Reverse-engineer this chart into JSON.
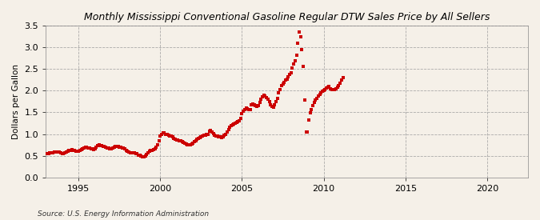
{
  "title": "Monthly Mississippi Conventional Gasoline Regular DTW Sales Price by All Sellers",
  "ylabel": "Dollars per Gallon",
  "source": "Source: U.S. Energy Information Administration",
  "background_color": "#f5f0e8",
  "marker_color": "#cc0000",
  "ylim": [
    0.0,
    3.5
  ],
  "yticks": [
    0.0,
    0.5,
    1.0,
    1.5,
    2.0,
    2.5,
    3.0,
    3.5
  ],
  "xlim": [
    1993.0,
    2022.5
  ],
  "xticks": [
    1995,
    2000,
    2005,
    2010,
    2015,
    2020
  ],
  "monthly_data": [
    [
      1993.08,
      0.54
    ],
    [
      1993.17,
      0.55
    ],
    [
      1993.25,
      0.56
    ],
    [
      1993.33,
      0.57
    ],
    [
      1993.42,
      0.57
    ],
    [
      1993.5,
      0.58
    ],
    [
      1993.58,
      0.59
    ],
    [
      1993.67,
      0.59
    ],
    [
      1993.75,
      0.59
    ],
    [
      1993.83,
      0.58
    ],
    [
      1993.92,
      0.57
    ],
    [
      1994.0,
      0.55
    ],
    [
      1994.08,
      0.55
    ],
    [
      1994.17,
      0.57
    ],
    [
      1994.25,
      0.58
    ],
    [
      1994.33,
      0.6
    ],
    [
      1994.42,
      0.62
    ],
    [
      1994.5,
      0.63
    ],
    [
      1994.58,
      0.64
    ],
    [
      1994.67,
      0.63
    ],
    [
      1994.75,
      0.62
    ],
    [
      1994.83,
      0.61
    ],
    [
      1994.92,
      0.6
    ],
    [
      1995.0,
      0.6
    ],
    [
      1995.08,
      0.62
    ],
    [
      1995.17,
      0.64
    ],
    [
      1995.25,
      0.66
    ],
    [
      1995.33,
      0.68
    ],
    [
      1995.42,
      0.69
    ],
    [
      1995.5,
      0.69
    ],
    [
      1995.58,
      0.68
    ],
    [
      1995.67,
      0.67
    ],
    [
      1995.75,
      0.66
    ],
    [
      1995.83,
      0.65
    ],
    [
      1995.92,
      0.64
    ],
    [
      1996.0,
      0.65
    ],
    [
      1996.08,
      0.7
    ],
    [
      1996.17,
      0.73
    ],
    [
      1996.25,
      0.75
    ],
    [
      1996.33,
      0.74
    ],
    [
      1996.42,
      0.73
    ],
    [
      1996.5,
      0.72
    ],
    [
      1996.58,
      0.71
    ],
    [
      1996.67,
      0.7
    ],
    [
      1996.75,
      0.68
    ],
    [
      1996.83,
      0.67
    ],
    [
      1996.92,
      0.65
    ],
    [
      1997.0,
      0.66
    ],
    [
      1997.08,
      0.68
    ],
    [
      1997.17,
      0.7
    ],
    [
      1997.25,
      0.71
    ],
    [
      1997.33,
      0.71
    ],
    [
      1997.42,
      0.71
    ],
    [
      1997.5,
      0.7
    ],
    [
      1997.58,
      0.69
    ],
    [
      1997.67,
      0.68
    ],
    [
      1997.75,
      0.67
    ],
    [
      1997.83,
      0.65
    ],
    [
      1997.92,
      0.62
    ],
    [
      1998.0,
      0.6
    ],
    [
      1998.08,
      0.58
    ],
    [
      1998.17,
      0.57
    ],
    [
      1998.25,
      0.56
    ],
    [
      1998.33,
      0.56
    ],
    [
      1998.42,
      0.56
    ],
    [
      1998.5,
      0.55
    ],
    [
      1998.58,
      0.54
    ],
    [
      1998.67,
      0.52
    ],
    [
      1998.75,
      0.51
    ],
    [
      1998.83,
      0.5
    ],
    [
      1998.92,
      0.48
    ],
    [
      1999.0,
      0.48
    ],
    [
      1999.08,
      0.5
    ],
    [
      1999.17,
      0.53
    ],
    [
      1999.25,
      0.57
    ],
    [
      1999.33,
      0.6
    ],
    [
      1999.42,
      0.62
    ],
    [
      1999.5,
      0.63
    ],
    [
      1999.58,
      0.64
    ],
    [
      1999.67,
      0.66
    ],
    [
      1999.75,
      0.7
    ],
    [
      1999.83,
      0.76
    ],
    [
      1999.92,
      0.84
    ],
    [
      2000.0,
      0.96
    ],
    [
      2000.08,
      1.0
    ],
    [
      2000.17,
      1.02
    ],
    [
      2000.25,
      1.02
    ],
    [
      2000.33,
      1.0
    ],
    [
      2000.42,
      0.99
    ],
    [
      2000.5,
      0.97
    ],
    [
      2000.58,
      0.96
    ],
    [
      2000.67,
      0.95
    ],
    [
      2000.75,
      0.93
    ],
    [
      2000.83,
      0.9
    ],
    [
      2000.92,
      0.88
    ],
    [
      2001.0,
      0.87
    ],
    [
      2001.08,
      0.86
    ],
    [
      2001.17,
      0.85
    ],
    [
      2001.25,
      0.84
    ],
    [
      2001.33,
      0.82
    ],
    [
      2001.42,
      0.81
    ],
    [
      2001.5,
      0.79
    ],
    [
      2001.58,
      0.77
    ],
    [
      2001.67,
      0.76
    ],
    [
      2001.75,
      0.75
    ],
    [
      2001.83,
      0.76
    ],
    [
      2001.92,
      0.77
    ],
    [
      2002.0,
      0.79
    ],
    [
      2002.08,
      0.82
    ],
    [
      2002.17,
      0.85
    ],
    [
      2002.25,
      0.88
    ],
    [
      2002.33,
      0.9
    ],
    [
      2002.42,
      0.92
    ],
    [
      2002.5,
      0.94
    ],
    [
      2002.58,
      0.95
    ],
    [
      2002.67,
      0.97
    ],
    [
      2002.75,
      0.98
    ],
    [
      2002.83,
      0.99
    ],
    [
      2002.92,
      1.0
    ],
    [
      2003.0,
      1.06
    ],
    [
      2003.08,
      1.08
    ],
    [
      2003.17,
      1.04
    ],
    [
      2003.25,
      1.01
    ],
    [
      2003.33,
      0.98
    ],
    [
      2003.42,
      0.96
    ],
    [
      2003.5,
      0.95
    ],
    [
      2003.58,
      0.94
    ],
    [
      2003.67,
      0.93
    ],
    [
      2003.75,
      0.92
    ],
    [
      2003.83,
      0.94
    ],
    [
      2003.92,
      0.97
    ],
    [
      2004.0,
      1.0
    ],
    [
      2004.08,
      1.05
    ],
    [
      2004.17,
      1.11
    ],
    [
      2004.25,
      1.16
    ],
    [
      2004.33,
      1.2
    ],
    [
      2004.42,
      1.22
    ],
    [
      2004.5,
      1.23
    ],
    [
      2004.58,
      1.24
    ],
    [
      2004.67,
      1.26
    ],
    [
      2004.75,
      1.28
    ],
    [
      2004.83,
      1.3
    ],
    [
      2004.92,
      1.36
    ],
    [
      2005.0,
      1.47
    ],
    [
      2005.08,
      1.52
    ],
    [
      2005.17,
      1.57
    ],
    [
      2005.25,
      1.6
    ],
    [
      2005.33,
      1.59
    ],
    [
      2005.42,
      1.57
    ],
    [
      2005.5,
      1.56
    ],
    [
      2005.58,
      1.67
    ],
    [
      2005.67,
      1.7
    ],
    [
      2005.75,
      1.68
    ],
    [
      2005.83,
      1.66
    ],
    [
      2005.92,
      1.63
    ],
    [
      2006.0,
      1.65
    ],
    [
      2006.08,
      1.72
    ],
    [
      2006.17,
      1.8
    ],
    [
      2006.25,
      1.86
    ],
    [
      2006.33,
      1.9
    ],
    [
      2006.42,
      1.87
    ],
    [
      2006.5,
      1.84
    ],
    [
      2006.58,
      1.8
    ],
    [
      2006.67,
      1.75
    ],
    [
      2006.75,
      1.68
    ],
    [
      2006.83,
      1.64
    ],
    [
      2006.92,
      1.62
    ],
    [
      2007.0,
      1.68
    ],
    [
      2007.08,
      1.74
    ],
    [
      2007.17,
      1.82
    ],
    [
      2007.25,
      1.95
    ],
    [
      2007.33,
      2.02
    ],
    [
      2007.42,
      2.12
    ],
    [
      2007.5,
      2.16
    ],
    [
      2007.58,
      2.19
    ],
    [
      2007.67,
      2.24
    ],
    [
      2007.75,
      2.26
    ],
    [
      2007.83,
      2.32
    ],
    [
      2007.92,
      2.37
    ],
    [
      2008.0,
      2.42
    ],
    [
      2008.08,
      2.52
    ],
    [
      2008.17,
      2.62
    ],
    [
      2008.25,
      2.68
    ],
    [
      2008.33,
      2.82
    ],
    [
      2008.42,
      3.1
    ],
    [
      2008.5,
      3.35
    ],
    [
      2008.58,
      3.25
    ],
    [
      2008.67,
      2.95
    ],
    [
      2008.75,
      2.55
    ],
    [
      2008.83,
      1.78
    ],
    [
      2008.92,
      1.05
    ],
    [
      2009.0,
      1.05
    ],
    [
      2009.08,
      1.32
    ],
    [
      2009.17,
      1.48
    ],
    [
      2009.25,
      1.57
    ],
    [
      2009.33,
      1.65
    ],
    [
      2009.42,
      1.72
    ],
    [
      2009.5,
      1.78
    ],
    [
      2009.58,
      1.82
    ],
    [
      2009.67,
      1.88
    ],
    [
      2009.75,
      1.92
    ],
    [
      2009.83,
      1.95
    ],
    [
      2009.92,
      1.98
    ],
    [
      2010.0,
      2.0
    ],
    [
      2010.08,
      2.03
    ],
    [
      2010.17,
      2.06
    ],
    [
      2010.25,
      2.08
    ],
    [
      2010.33,
      2.1
    ],
    [
      2010.42,
      2.05
    ],
    [
      2010.5,
      2.02
    ],
    [
      2010.58,
      2.02
    ],
    [
      2010.67,
      2.02
    ],
    [
      2010.75,
      2.05
    ],
    [
      2010.83,
      2.08
    ],
    [
      2010.92,
      2.12
    ],
    [
      2011.0,
      2.18
    ],
    [
      2011.08,
      2.24
    ],
    [
      2011.17,
      2.3
    ]
  ]
}
